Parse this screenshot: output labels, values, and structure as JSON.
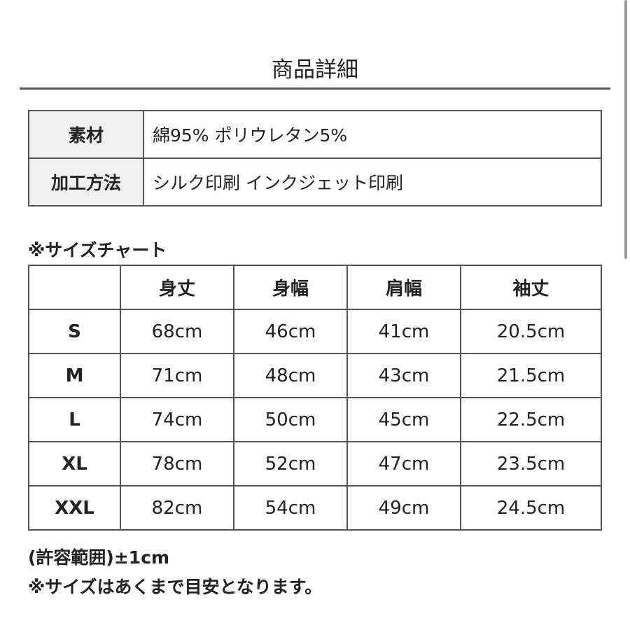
{
  "title": "商品詳細",
  "spec": [
    {
      "label": "素材",
      "value": "綿95% ポリウレタン5%"
    },
    {
      "label": "加工方法",
      "value": "シルク印刷 インクジェット印刷"
    }
  ],
  "size_chart": {
    "label": "※サイズチャート",
    "headers": [
      "",
      "身丈",
      "身幅",
      "肩幅",
      "袖丈"
    ],
    "rows": [
      [
        "S",
        "68cm",
        "46cm",
        "41cm",
        "20.5cm"
      ],
      [
        "M",
        "71cm",
        "48cm",
        "43cm",
        "21.5cm"
      ],
      [
        "L",
        "74cm",
        "50cm",
        "45cm",
        "22.5cm"
      ],
      [
        "XL",
        "78cm",
        "52cm",
        "47cm",
        "23.5cm"
      ],
      [
        "XXL",
        "82cm",
        "54cm",
        "49cm",
        "24.5cm"
      ]
    ]
  },
  "notes": [
    "(許容範囲)±1cm",
    "※サイズはあくまで目安となります。"
  ]
}
